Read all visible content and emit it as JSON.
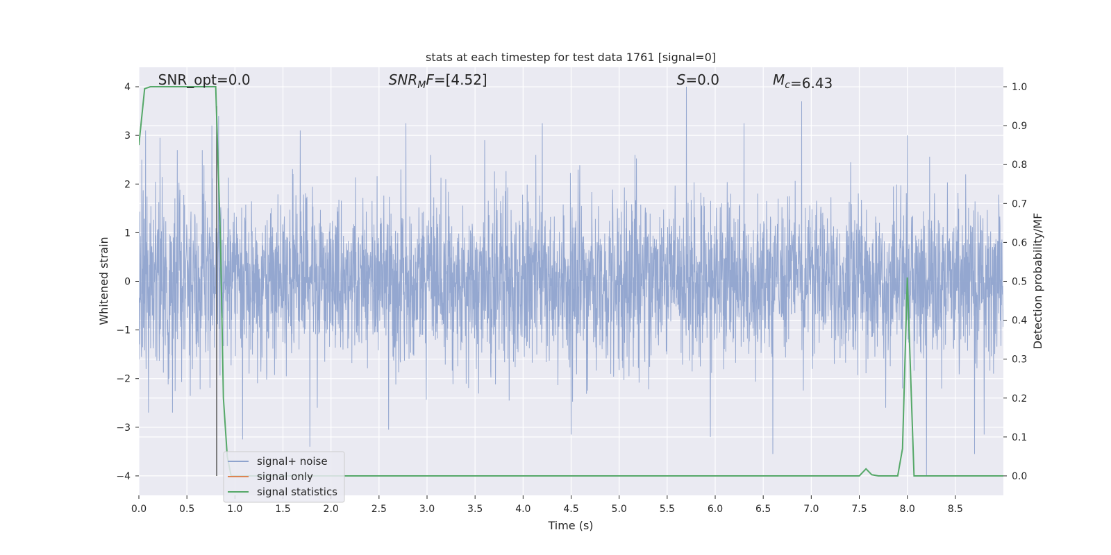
{
  "chart_data": {
    "type": "line",
    "title": "stats at each timestep for test data 1761 [signal=0]",
    "xlabel": "Time (s)",
    "ylabel_left": "Whitened strain",
    "ylabel_right": "Detection probability/MF",
    "xlim": [
      0.0,
      9.0
    ],
    "ylim_left": [
      -4.4,
      4.4
    ],
    "ylim_right": [
      -0.05,
      1.05
    ],
    "xticks": [
      0.0,
      0.5,
      1.0,
      1.5,
      2.0,
      2.5,
      3.0,
      3.5,
      4.0,
      4.5,
      5.0,
      5.5,
      6.0,
      6.5,
      7.0,
      7.5,
      8.0,
      8.5
    ],
    "yticks_left": [
      -4,
      -3,
      -2,
      -1,
      0,
      1,
      2,
      3,
      4
    ],
    "yticks_right": [
      0.0,
      0.1,
      0.2,
      0.3,
      0.4,
      0.5,
      0.6,
      0.7,
      0.8,
      0.9,
      1.0
    ],
    "grid": true,
    "background": "#eaeaf2",
    "annotations": [
      {
        "text": "SNR_opt=0.0",
        "x": 0.2
      },
      {
        "text": "SNR_MF=[4.52]",
        "x": 2.6
      },
      {
        "text": "S=0.0",
        "x": 5.6
      },
      {
        "text": "M_c=6.43",
        "x": 6.6
      }
    ],
    "marker_line": {
      "x": 0.81,
      "y_from": -4.0,
      "y_to": 3.6,
      "color": "#555555"
    },
    "series": [
      {
        "name": "signal+ noise",
        "axis": "left",
        "color": "#8fa3cd",
        "description_typical_range": [
          -2.0,
          2.5
        ],
        "peaks": [
          {
            "x": 0.03,
            "y": 2.5
          },
          {
            "x": 0.07,
            "y": 3.1
          },
          {
            "x": 0.22,
            "y": 2.95
          },
          {
            "x": 0.4,
            "y": 2.7
          },
          {
            "x": 0.66,
            "y": 2.7
          },
          {
            "x": 0.76,
            "y": 3.2
          },
          {
            "x": 0.83,
            "y": 3.4
          },
          {
            "x": 1.68,
            "y": 3.1
          },
          {
            "x": 2.78,
            "y": 3.25
          },
          {
            "x": 3.6,
            "y": 2.9
          },
          {
            "x": 4.2,
            "y": 3.25
          },
          {
            "x": 5.7,
            "y": 4.0
          },
          {
            "x": 6.3,
            "y": 3.25
          },
          {
            "x": 6.9,
            "y": 3.7
          },
          {
            "x": 8.0,
            "y": 3.0
          },
          {
            "x": 8.8,
            "y": 3.25
          },
          {
            "x": 1.78,
            "y": -3.4
          },
          {
            "x": 1.08,
            "y": -3.25
          },
          {
            "x": 2.6,
            "y": -3.05
          },
          {
            "x": 4.5,
            "y": -3.15
          },
          {
            "x": 5.95,
            "y": -3.2
          },
          {
            "x": 6.6,
            "y": -3.55
          },
          {
            "x": 8.2,
            "y": -4.0
          },
          {
            "x": 8.7,
            "y": -3.55
          },
          {
            "x": 8.8,
            "y": -3.15
          },
          {
            "x": 0.1,
            "y": -2.7
          },
          {
            "x": 0.35,
            "y": -2.7
          }
        ]
      },
      {
        "name": "signal only",
        "axis": "left",
        "color": "#dd8452",
        "x": [],
        "y": []
      },
      {
        "name": "signal statistics",
        "axis": "right",
        "color": "#55a868",
        "x": [
          0.0,
          0.06,
          0.12,
          0.3,
          0.5,
          0.7,
          0.8,
          0.85,
          0.88,
          0.92,
          0.96,
          1.0,
          2.0,
          4.0,
          6.0,
          7.0,
          7.5,
          7.57,
          7.63,
          7.7,
          7.9,
          7.95,
          8.0,
          8.07,
          8.15,
          8.5,
          9.0
        ],
        "y": [
          0.85,
          0.995,
          1.0,
          1.0,
          1.0,
          1.0,
          1.0,
          0.6,
          0.2,
          0.05,
          0.0,
          0.0,
          0.0,
          0.0,
          0.0,
          0.0,
          0.0,
          0.018,
          0.003,
          0.0,
          0.0,
          0.07,
          0.51,
          0.0,
          0.0,
          0.0,
          0.0
        ]
      }
    ],
    "legend": {
      "position": "lower-left",
      "entries": [
        "signal+ noise",
        "signal only",
        "signal statistics"
      ]
    }
  }
}
